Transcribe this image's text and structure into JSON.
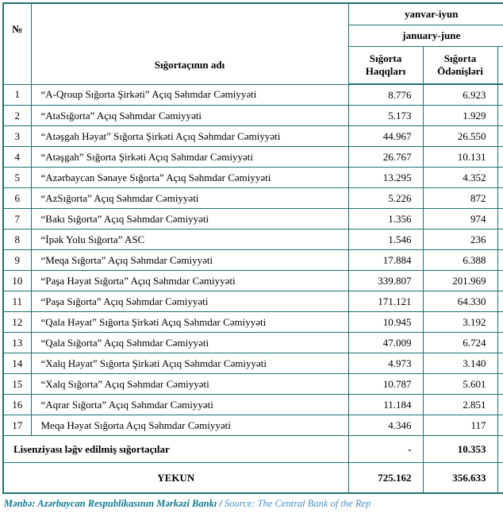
{
  "table": {
    "header": {
      "col_no": "№",
      "col_name": "Sığortaçının adı",
      "period_az": "yanvar-iyun",
      "period_en": "january-june",
      "col_premiums": "Sığorta Haqqları",
      "col_payments": "Sığorta Ödənişləri"
    },
    "rows": [
      {
        "no": "1",
        "name": "“A-Qroup Sığorta Şirkəti” Açıq Səhmdar Cəmiyyəti",
        "premiums": "8.776",
        "payments": "6.923"
      },
      {
        "no": "2",
        "name": "“AtaSığorta” Açıq Səhmdar Cəmiyyəti",
        "premiums": "5.173",
        "payments": "1.929"
      },
      {
        "no": "3",
        "name": "“Atəşgah Həyat” Sığorta Şirkəti Açıq Səhmdar Cəmiyyəti",
        "premiums": "44.967",
        "payments": "26.550"
      },
      {
        "no": "4",
        "name": "“Atəşgah” Sığorta Şirkəti Açıq Səhmdar Cəmiyyəti",
        "premiums": "26.767",
        "payments": "10.131"
      },
      {
        "no": "5",
        "name": "“Azərbaycan Sənaye Sığorta” Açıq Səhmdar Cəmiyyəti",
        "premiums": "13.295",
        "payments": "4.352"
      },
      {
        "no": "6",
        "name": "“AzSığorta” Açıq Səhmdar Cəmiyyəti",
        "premiums": "5.226",
        "payments": "872"
      },
      {
        "no": "7",
        "name": "“Bakı Sığorta” Açıq Səhmdar Cəmiyyəti",
        "premiums": "1.356",
        "payments": "974"
      },
      {
        "no": "8",
        "name": "“İpək Yolu Sığorta” ASC",
        "premiums": "1.546",
        "payments": "236"
      },
      {
        "no": "9",
        "name": "“Meqa Sığorta” Açıq Səhmdar Cəmiyyəti",
        "premiums": "17.884",
        "payments": "6.388"
      },
      {
        "no": "10",
        "name": "“Paşa Həyat Sığorta” Açıq Səhmdar Cəmiyyəti",
        "premiums": "339.807",
        "payments": "201.969"
      },
      {
        "no": "11",
        "name": "“Paşa Sığorta” Açıq Səhmdar Cəmiyyəti",
        "premiums": "171.121",
        "payments": "64.330"
      },
      {
        "no": "12",
        "name": "“Qala Həyat” Sığorta Şirkəti Açıq Səhmdar Cəmiyyəti",
        "premiums": "10.945",
        "payments": "3.192"
      },
      {
        "no": "13",
        "name": "“Qala Sığorta” Açıq Səhmdar Cəmiyyəti",
        "premiums": "47.009",
        "payments": "6.724"
      },
      {
        "no": "14",
        "name": "“Xalq Həyat” Sığorta Şirkəti Açıq Səhmdar Cəmiyyəti",
        "premiums": "4.973",
        "payments": "3.140"
      },
      {
        "no": "15",
        "name": "“Xalq Sığorta” Açıq Səhmdar Cəmiyyəti",
        "premiums": "10.787",
        "payments": "5.601"
      },
      {
        "no": "16",
        "name": "“Aqrar Sığorta” Açıq Səhmdar Cəmiyyəti",
        "premiums": "11.184",
        "payments": "2.851"
      },
      {
        "no": "17",
        "name": "Meqa Həyat Sığorta Açıq Səhmdar Cəmiyyəti",
        "premiums": "4.346",
        "payments": "117"
      }
    ],
    "cancelled_row": {
      "label": "Lisenziyası ləğv edilmiş sığortaçılar",
      "premiums": "-",
      "payments": "10.353"
    },
    "total_row": {
      "label": "YEKUN",
      "premiums": "725.162",
      "payments": "356.633"
    }
  },
  "footer": {
    "source_az": "Mənbə: Azərbaycan Respublikasının Mərkəzi Bankı",
    "separator": " / ",
    "source_en": "Source: The Central Bank of the Rep"
  }
}
